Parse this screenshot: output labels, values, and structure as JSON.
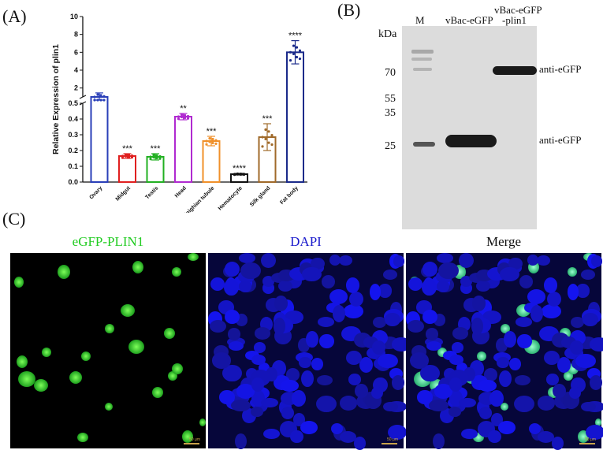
{
  "panels": {
    "a_label": "(A)",
    "b_label": "(B)",
    "c_label": "(C)"
  },
  "chart_data": {
    "type": "bar",
    "ylabel": "Relative Expression of plin1",
    "categories": [
      "Ovary",
      "Midgut",
      "Testis",
      "Head",
      "Malpighian tubule",
      "Hematocyte",
      "Silk gland",
      "Fat body"
    ],
    "values": [
      1.0,
      0.165,
      0.16,
      0.415,
      0.26,
      0.05,
      0.285,
      6.0
    ],
    "errors": [
      0.45,
      0.015,
      0.02,
      0.02,
      0.03,
      0.005,
      0.085,
      1.3
    ],
    "colors": [
      "#2a3fb8",
      "#e02020",
      "#22b022",
      "#b02ad0",
      "#f0902a",
      "#111111",
      "#a06a2a",
      "#1a2a8a"
    ],
    "significance": [
      "",
      "***",
      "***",
      "**",
      "***",
      "****",
      "***",
      "****"
    ],
    "y_axis_lower": {
      "range": [
        0,
        0.5
      ],
      "ticks": [
        "0.0",
        "0.1",
        "0.2",
        "0.3",
        "0.4",
        "0.5"
      ]
    },
    "y_axis_upper": {
      "range": [
        1,
        10
      ],
      "ticks": [
        "2",
        "4",
        "6",
        "8",
        "10"
      ]
    },
    "y_axis_break": true
  },
  "blot": {
    "unit": "kDa",
    "lanes": [
      "M",
      "vBac-eGFP",
      "vBac-eGFP",
      "-plin1"
    ],
    "markers": [
      "70",
      "55",
      "35",
      "25"
    ],
    "band_labels": [
      "anti-eGFP",
      "anti-eGFP"
    ]
  },
  "microscopy": {
    "titles": [
      "eGFP-PLIN1",
      "DAPI",
      "Merge"
    ],
    "title_colors": [
      "#22cc22",
      "#1a1acc",
      "#111111"
    ],
    "scale_text": "50 μm"
  }
}
